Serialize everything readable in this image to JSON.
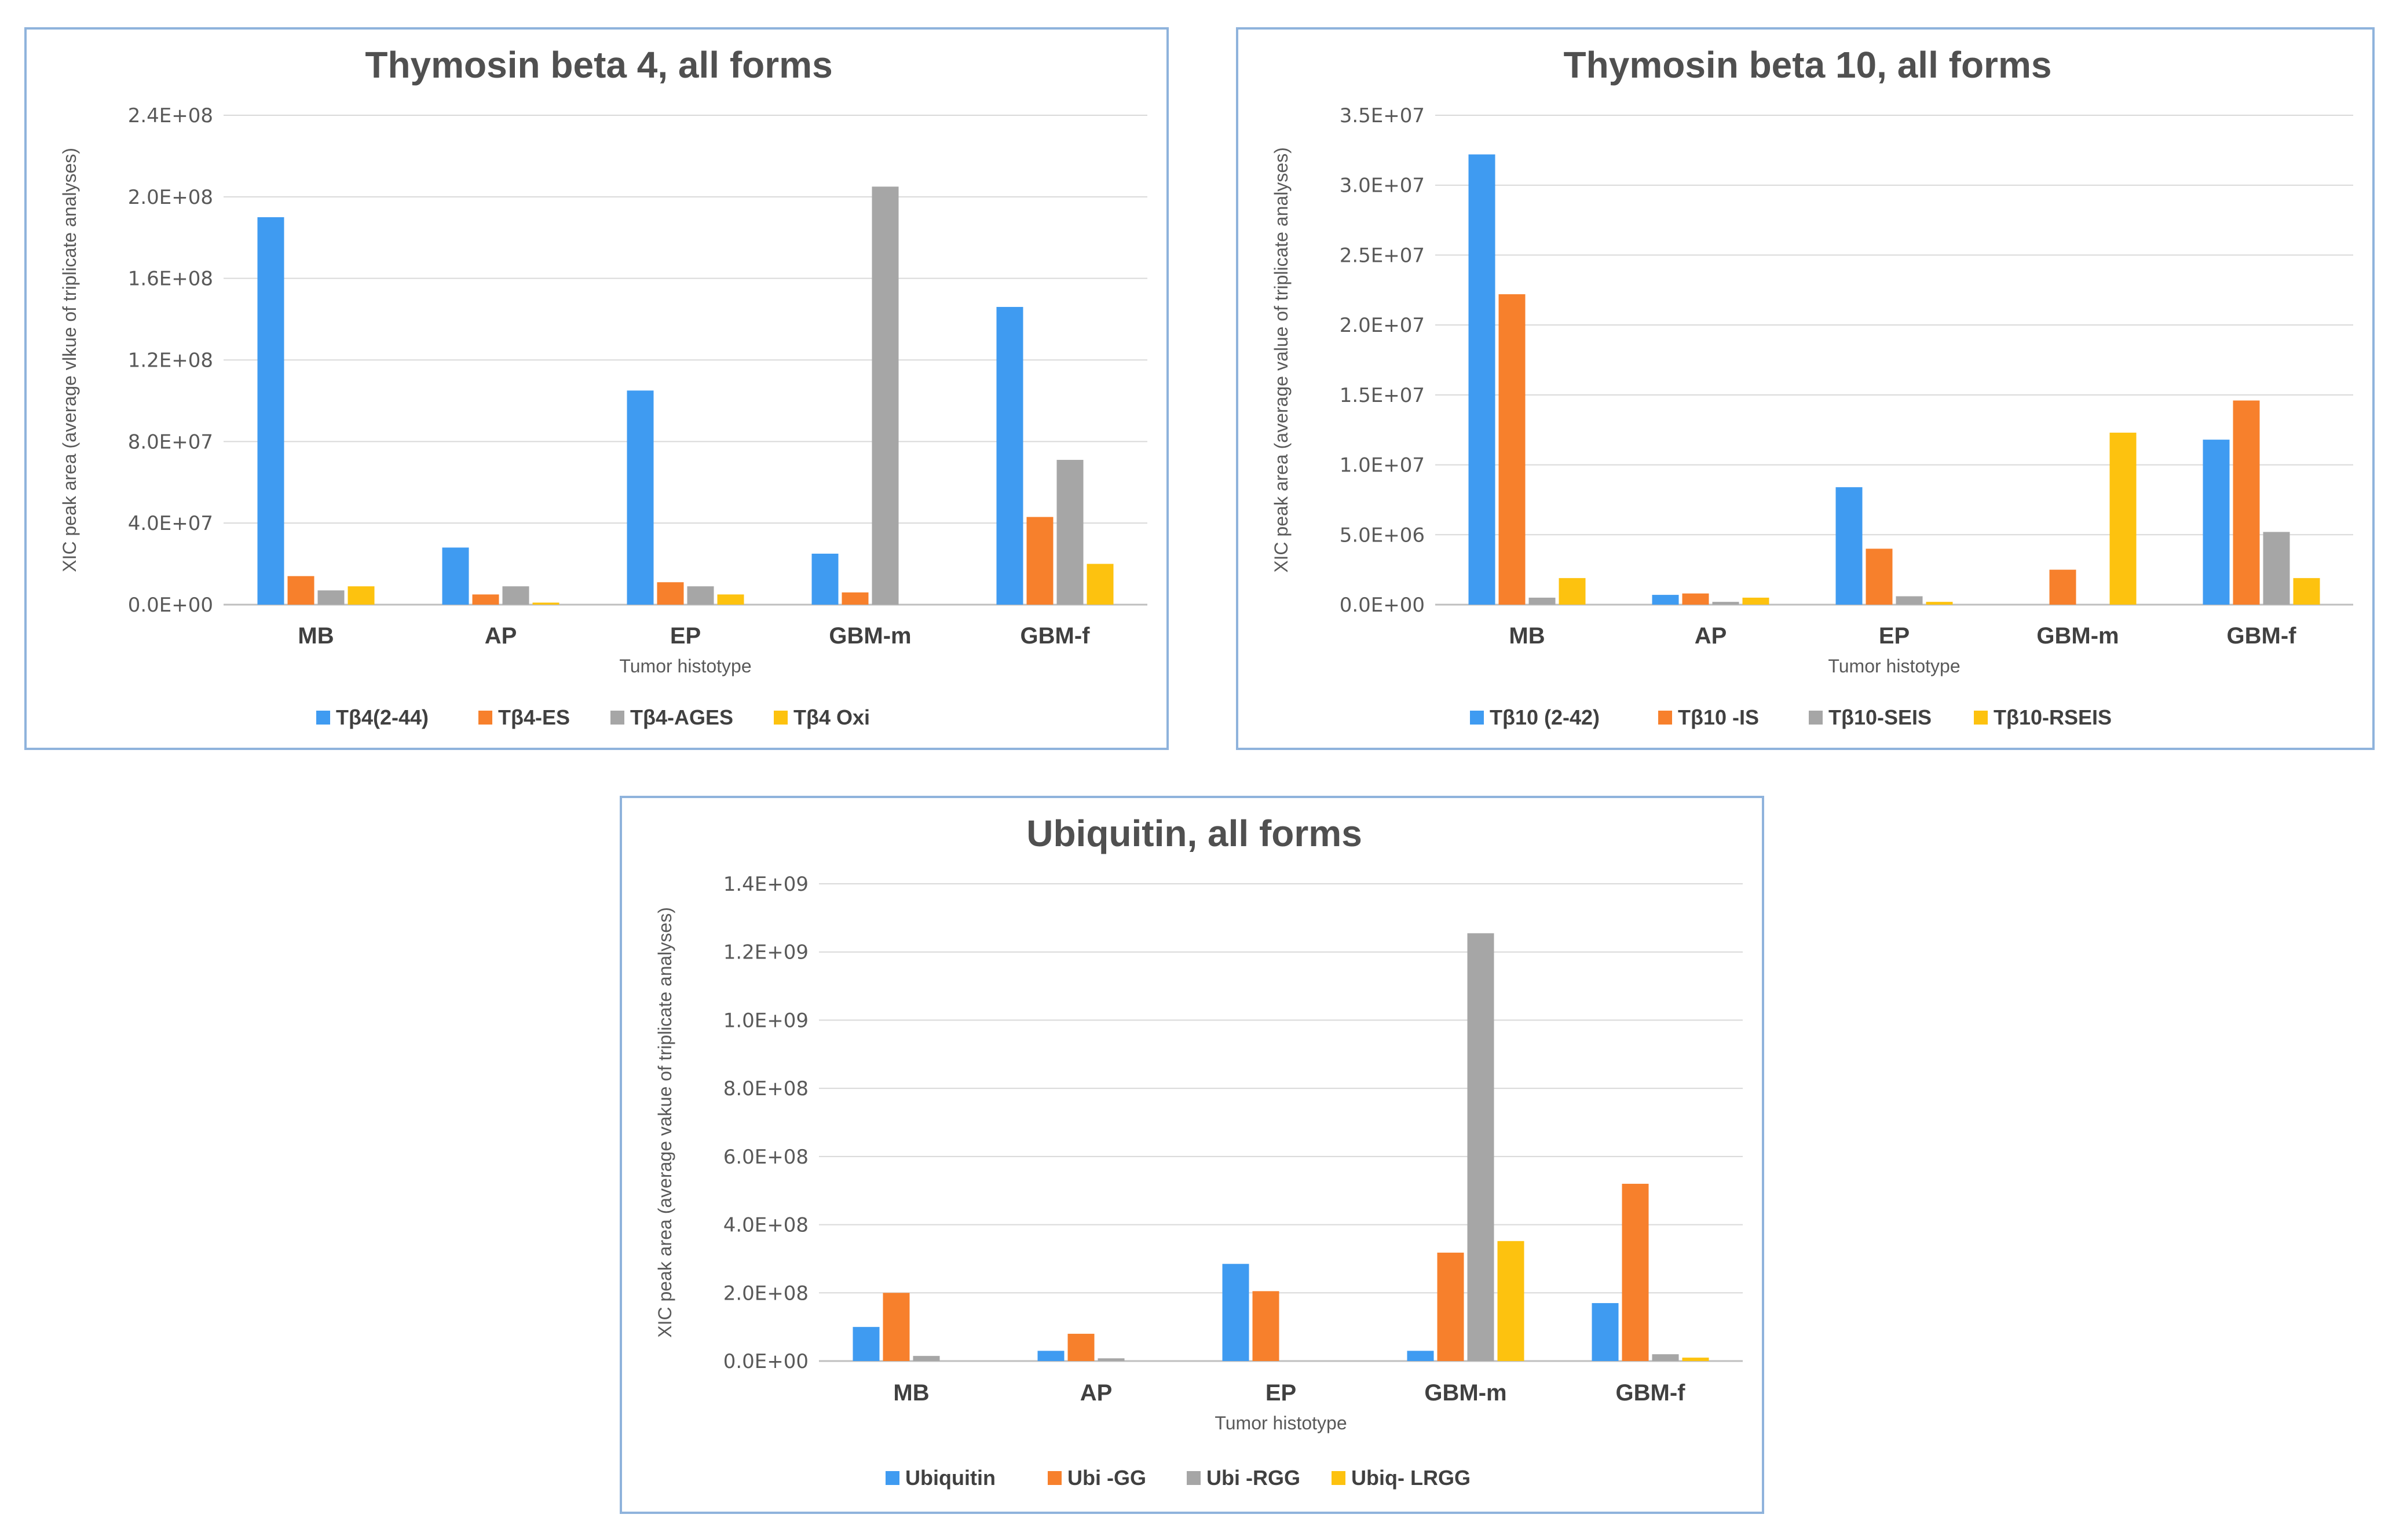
{
  "colors": {
    "s1": "#3f9bf1",
    "s2": "#f7802c",
    "s3": "#a6a6a6",
    "s4": "#fdc20f"
  },
  "chart_data": [
    {
      "type": "bar",
      "title": "Thymosin beta 4, all forms",
      "xlabel": "Tumor histotype",
      "ylabel": "XIC peak area (average vlkue of triplicate analyses)",
      "categories": [
        "MB",
        "AP",
        "EP",
        "GBM-m",
        "GBM-f"
      ],
      "ylim": [
        0,
        240000000
      ],
      "yticks": [
        0,
        40000000,
        80000000,
        120000000,
        160000000,
        200000000,
        240000000
      ],
      "ytick_labels": [
        "0.0E+00",
        "4.0E+07",
        "8.0E+07",
        "1.2E+08",
        "1.6E+08",
        "2.0E+08",
        "2.4E+08"
      ],
      "series": [
        {
          "name": "Tβ4(2-44)",
          "values": [
            190000000,
            28000000,
            105000000,
            25000000,
            146000000
          ]
        },
        {
          "name": "Tβ4-ES",
          "values": [
            14000000,
            5000000,
            11000000,
            6000000,
            43000000
          ]
        },
        {
          "name": "Tβ4-AGES",
          "values": [
            7000000,
            9000000,
            9000000,
            205000000,
            71000000
          ]
        },
        {
          "name": "Tβ4 Oxi",
          "values": [
            9000000,
            1000000,
            5000000,
            0,
            20000000
          ]
        }
      ]
    },
    {
      "type": "bar",
      "title": "Thymosin beta 10, all forms",
      "xlabel": "Tumor histotype",
      "ylabel": "XIC peak area (average value of triplicate analyses)",
      "categories": [
        "MB",
        "AP",
        "EP",
        "GBM-m",
        "GBM-f"
      ],
      "ylim": [
        0,
        35000000
      ],
      "yticks": [
        0,
        5000000,
        10000000,
        15000000,
        20000000,
        25000000,
        30000000,
        35000000
      ],
      "ytick_labels": [
        "0.0E+00",
        "5.0E+06",
        "1.0E+07",
        "1.5E+07",
        "2.0E+07",
        "2.5E+07",
        "3.0E+07",
        "3.5E+07"
      ],
      "series": [
        {
          "name": "Tβ10 (2-42)",
          "values": [
            32200000,
            700000,
            8400000,
            0,
            11800000
          ]
        },
        {
          "name": "Tβ10 -IS",
          "values": [
            22200000,
            800000,
            4000000,
            2500000,
            14600000
          ]
        },
        {
          "name": "Tβ10-SEIS",
          "values": [
            500000,
            200000,
            600000,
            0,
            5200000
          ]
        },
        {
          "name": "Tβ10-RSEIS",
          "values": [
            1900000,
            500000,
            200000,
            12300000,
            1900000
          ]
        }
      ]
    },
    {
      "type": "bar",
      "title": "Ubiquitin, all forms",
      "xlabel": "Tumor histotype",
      "ylabel": "XIC peak area (average vakue of triplicate analyses)",
      "categories": [
        "MB",
        "AP",
        "EP",
        "GBM-m",
        "GBM-f"
      ],
      "ylim": [
        0,
        1400000000
      ],
      "yticks": [
        0,
        200000000,
        400000000,
        600000000,
        800000000,
        1000000000,
        1200000000,
        1400000000
      ],
      "ytick_labels": [
        "0.0E+00",
        "2.0E+08",
        "4.0E+08",
        "6.0E+08",
        "8.0E+08",
        "1.0E+09",
        "1.2E+09",
        "1.4E+09"
      ],
      "series": [
        {
          "name": "Ubiquitin",
          "values": [
            100000000,
            30000000,
            285000000,
            30000000,
            170000000
          ]
        },
        {
          "name": "Ubi -GG",
          "values": [
            200000000,
            80000000,
            205000000,
            318000000,
            520000000
          ]
        },
        {
          "name": "Ubi -RGG",
          "values": [
            15000000,
            8000000,
            0,
            1255000000,
            20000000
          ]
        },
        {
          "name": "Ubiq- LRGG",
          "values": [
            0,
            0,
            0,
            352000000,
            10000000
          ]
        }
      ]
    }
  ]
}
